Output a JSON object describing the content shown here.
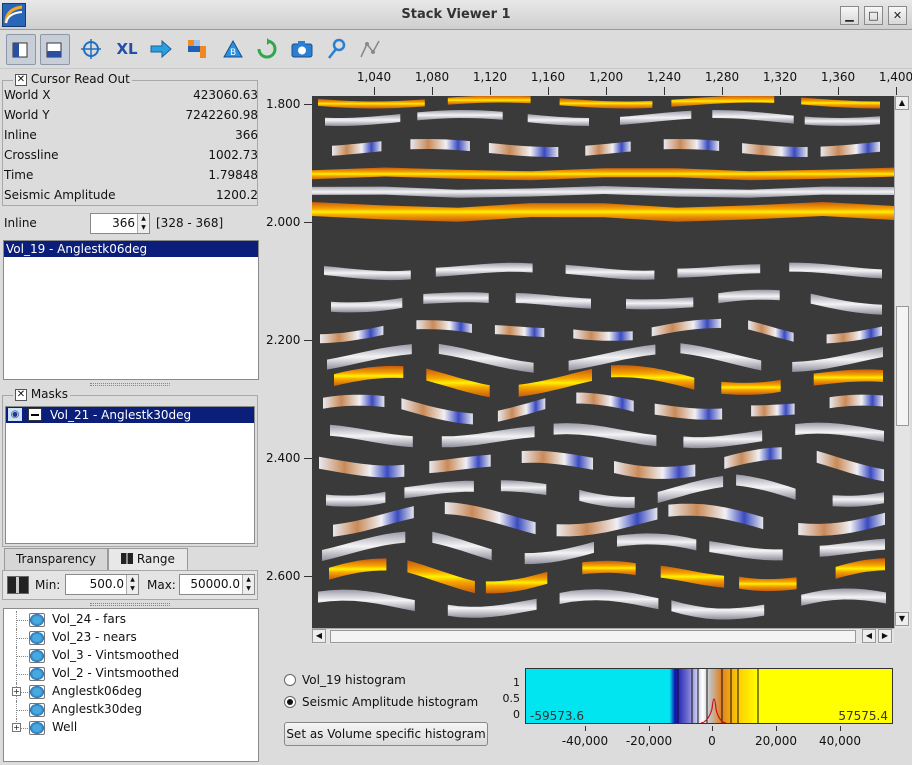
{
  "window": {
    "title": "Stack Viewer 1"
  },
  "toolbar": {
    "buttons": [
      "view-mode-icon",
      "overlay-mode-icon",
      "crosshair-icon",
      "xl-export-icon",
      "arrow-right-icon",
      "colorbar-icon",
      "bin-icon",
      "refresh-icon",
      "camera-icon",
      "probe-icon",
      "pick-icon"
    ],
    "xl_label": "XL"
  },
  "readout": {
    "title": "Cursor Read Out",
    "rows": [
      {
        "label": "World X",
        "value": "423060.63"
      },
      {
        "label": "World Y",
        "value": "7242260.98"
      },
      {
        "label": "Inline",
        "value": "366"
      },
      {
        "label": "Crossline",
        "value": "1002.73"
      },
      {
        "label": "Time",
        "value": "1.79848"
      },
      {
        "label": "Seismic Amplitude",
        "value": "1200.2"
      }
    ]
  },
  "inline": {
    "label": "Inline",
    "value": "366",
    "range": "[328 - 368]"
  },
  "volumes": [
    "Vol_19 - Anglestk06deg"
  ],
  "masks": {
    "title": "Masks",
    "items": [
      "Vol_21 - Anglestk30deg"
    ]
  },
  "tabs": {
    "transparency": "Transparency",
    "range": "Range"
  },
  "range": {
    "min_label": "Min:",
    "min_value": "500.0",
    "max_label": "Max:",
    "max_value": "50000.0"
  },
  "tree": [
    {
      "label": "Vol_24 - fars",
      "expandable": false
    },
    {
      "label": "Vol_23 - nears",
      "expandable": false
    },
    {
      "label": "Vol_3 - Vintsmoothed",
      "expandable": false
    },
    {
      "label": "Vol_2 - Vintsmoothed",
      "expandable": false
    },
    {
      "label": "Anglestk06deg",
      "expandable": true
    },
    {
      "label": "Anglestk30deg",
      "expandable": false
    },
    {
      "label": "Well",
      "expandable": true
    }
  ],
  "plot": {
    "x_ticks": [
      "1,040",
      "1,080",
      "1,120",
      "1,160",
      "1,200",
      "1,240",
      "1,280",
      "1,320",
      "1,360",
      "1,400"
    ],
    "y_ticks": [
      "1.800",
      "2.000",
      "2.200",
      "2.400",
      "2.600"
    ]
  },
  "histogram": {
    "option_vol": "Vol_19 histogram",
    "option_amp": "Seismic Amplitude histogram",
    "selected": "amp",
    "set_button": "Set as Volume specific histogram",
    "min_value": "-59573.6",
    "max_value": "57575.4",
    "x_ticks": [
      "-40,000",
      "-20,000",
      "0",
      "20,000",
      "40,000"
    ],
    "y_ticks": [
      "1",
      "0.5",
      "0"
    ],
    "colors": {
      "low": "#00e5ef",
      "high": "#ffff00"
    }
  }
}
